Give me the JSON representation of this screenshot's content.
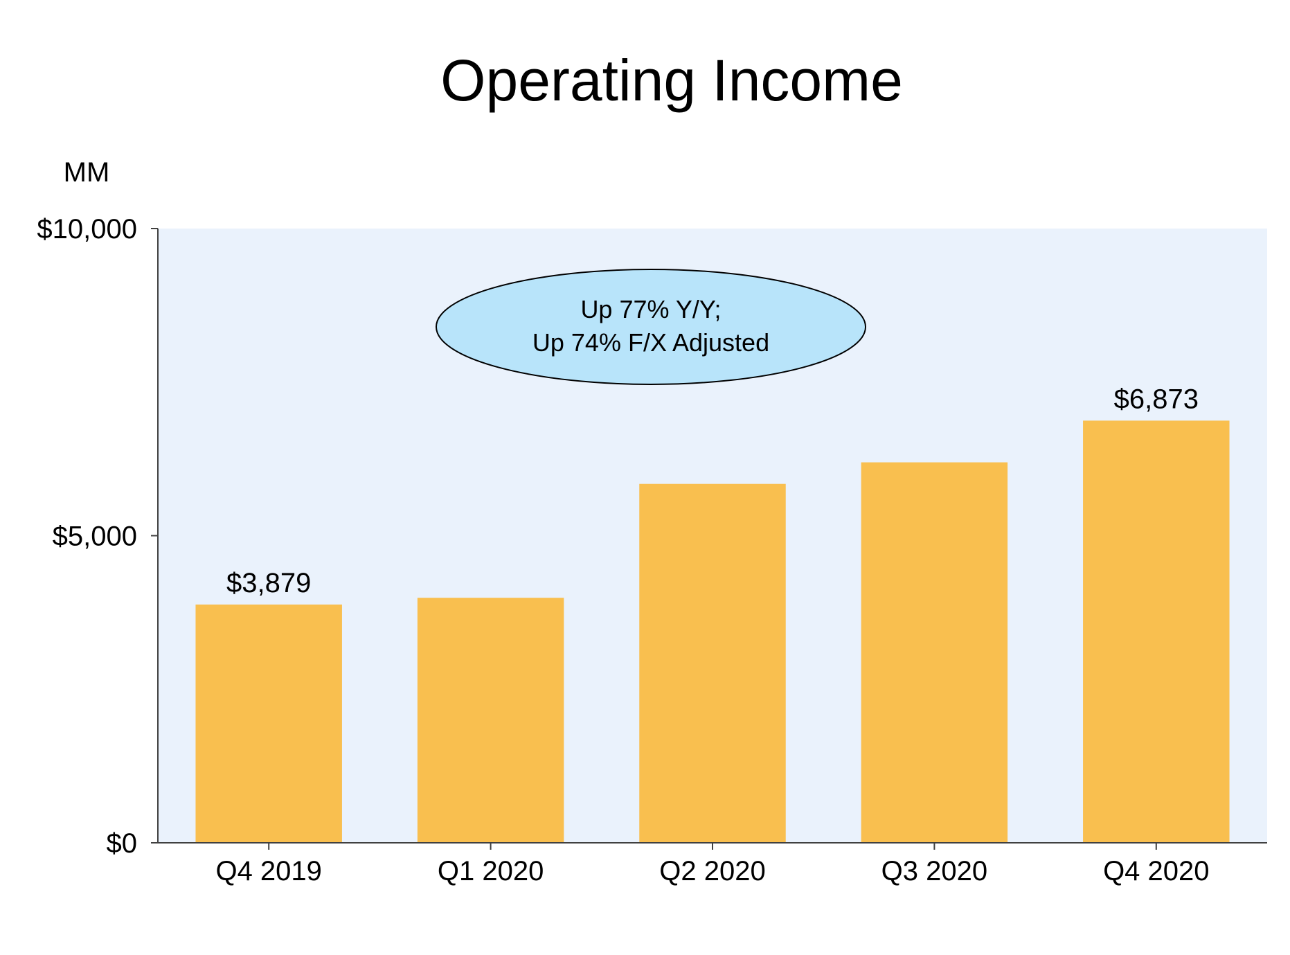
{
  "chart_data": {
    "type": "bar",
    "title": "Operating Income",
    "unit_label": "MM",
    "xlabel": "",
    "ylabel": "",
    "categories": [
      "Q4 2019",
      "Q1 2020",
      "Q2 2020",
      "Q3 2020",
      "Q4 2020"
    ],
    "values": [
      3879,
      3989,
      5843,
      6194,
      6873
    ],
    "data_labels": [
      "$3,879",
      null,
      null,
      null,
      "$6,873"
    ],
    "ylim": [
      0,
      10000
    ],
    "yticks": [
      0,
      5000,
      10000
    ],
    "ytick_labels": [
      "$0",
      "$5,000",
      "$10,000"
    ],
    "grid": false,
    "legend": "none",
    "callout": {
      "lines": [
        "Up 77% Y/Y;",
        "Up 74% F/X Adjusted"
      ]
    },
    "colors": {
      "bar": "#F9BF4F",
      "plot_background": "#EAF2FC",
      "callout_fill": "#B8E4FA",
      "axis": "#404040"
    }
  }
}
